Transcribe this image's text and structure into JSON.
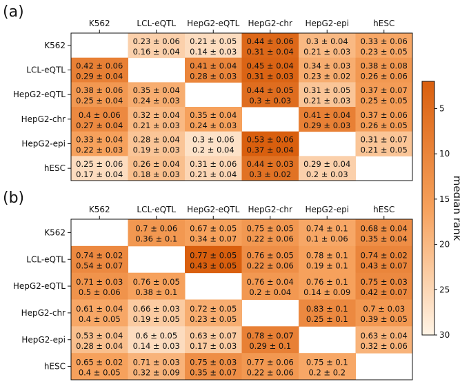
{
  "chart_data": [
    {
      "type": "heatmap",
      "panel_label": "(a)",
      "columns": [
        "K562",
        "LCL-eQTL",
        "HepG2-eQTL",
        "HepG2-chr",
        "HepG2-epi",
        "hESC"
      ],
      "rows": [
        "K562",
        "LCL-eQTL",
        "HepG2-eQTL",
        "HepG2-chr",
        "HepG2-epi",
        "hESC"
      ],
      "cells": [
        [
          null,
          [
            "0.23 ± 0.06",
            "0.16 ± 0.04"
          ],
          [
            "0.21 ± 0.05",
            "0.14 ± 0.03"
          ],
          [
            "0.44 ± 0.06",
            "0.31 ± 0.04"
          ],
          [
            "0.3 ± 0.04",
            "0.21 ± 0.03"
          ],
          [
            "0.33 ± 0.06",
            "0.23 ± 0.05"
          ]
        ],
        [
          [
            "0.42 ± 0.06",
            "0.29 ± 0.04"
          ],
          null,
          [
            "0.41 ± 0.04",
            "0.28 ± 0.03"
          ],
          [
            "0.45 ± 0.04",
            "0.31 ± 0.03"
          ],
          [
            "0.34 ± 0.03",
            "0.23 ± 0.02"
          ],
          [
            "0.38 ± 0.08",
            "0.26 ± 0.06"
          ]
        ],
        [
          [
            "0.38 ± 0.06",
            "0.25 ± 0.04"
          ],
          [
            "0.35 ± 0.04",
            "0.24 ± 0.03"
          ],
          null,
          [
            "0.44 ± 0.05",
            "0.3 ± 0.03"
          ],
          [
            "0.31 ± 0.05",
            "0.21 ± 0.03"
          ],
          [
            "0.37 ± 0.07",
            "0.25 ± 0.05"
          ]
        ],
        [
          [
            "0.4 ± 0.06",
            "0.27 ± 0.04"
          ],
          [
            "0.32 ± 0.04",
            "0.21 ± 0.03"
          ],
          [
            "0.35 ± 0.04",
            "0.24 ± 0.03"
          ],
          null,
          [
            "0.41 ± 0.04",
            "0.29 ± 0.03"
          ],
          [
            "0.37 ± 0.06",
            "0.26 ± 0.05"
          ]
        ],
        [
          [
            "0.33 ± 0.04",
            "0.22 ± 0.03"
          ],
          [
            "0.28 ± 0.04",
            "0.19 ± 0.03"
          ],
          [
            "0.3 ± 0.06",
            "0.2 ± 0.04"
          ],
          [
            "0.53 ± 0.06",
            "0.37 ± 0.04"
          ],
          null,
          [
            "0.31 ± 0.07",
            "0.21 ± 0.05"
          ]
        ],
        [
          [
            "0.25 ± 0.06",
            "0.17 ± 0.04"
          ],
          [
            "0.26 ± 0.04",
            "0.18 ± 0.03"
          ],
          [
            "0.31 ± 0.06",
            "0.21 ± 0.04"
          ],
          [
            "0.44 ± 0.03",
            "0.3 ± 0.02"
          ],
          [
            "0.29 ± 0.04",
            "0.2 ± 0.03"
          ],
          null
        ]
      ],
      "median_rank": [
        [
          null,
          24,
          26,
          4,
          20,
          17
        ],
        [
          9,
          null,
          10,
          3,
          18,
          14
        ],
        [
          14,
          18,
          null,
          5,
          22,
          15
        ],
        [
          11,
          20,
          16,
          null,
          9,
          15
        ],
        [
          16,
          22,
          27,
          2,
          null,
          22
        ],
        [
          26,
          21,
          25,
          6,
          24,
          null
        ]
      ]
    },
    {
      "type": "heatmap",
      "panel_label": "(b)",
      "columns": [
        "K562",
        "LCL-eQTL",
        "HepG2-eQTL",
        "HepG2-chr",
        "HepG2-epi",
        "hESC"
      ],
      "rows": [
        "K562",
        "LCL-eQTL",
        "HepG2-eQTL",
        "HepG2-chr",
        "HepG2-epi",
        "hESC"
      ],
      "cells": [
        [
          null,
          [
            "0.7 ± 0.06",
            "0.36 ± 0.1"
          ],
          [
            "0.67 ± 0.05",
            "0.34 ± 0.07"
          ],
          [
            "0.75 ± 0.05",
            "0.22 ± 0.06"
          ],
          [
            "0.74 ± 0.1",
            "0.1 ± 0.06"
          ],
          [
            "0.68 ± 0.04",
            "0.35 ± 0.04"
          ]
        ],
        [
          [
            "0.74 ± 0.02",
            "0.54 ± 0.07"
          ],
          null,
          [
            "0.77 ± 0.05",
            "0.43 ± 0.05"
          ],
          [
            "0.76 ± 0.05",
            "0.22 ± 0.06"
          ],
          [
            "0.78 ± 0.1",
            "0.19 ± 0.1"
          ],
          [
            "0.74 ± 0.02",
            "0.43 ± 0.07"
          ]
        ],
        [
          [
            "0.71 ± 0.03",
            "0.5 ± 0.06"
          ],
          [
            "0.76 ± 0.05",
            "0.38 ± 0.1"
          ],
          null,
          [
            "0.76 ± 0.04",
            "0.2 ± 0.04"
          ],
          [
            "0.76 ± 0.1",
            "0.14 ± 0.09"
          ],
          [
            "0.75 ± 0.03",
            "0.42 ± 0.07"
          ]
        ],
        [
          [
            "0.61 ± 0.04",
            "0.4 ± 0.05"
          ],
          [
            "0.66 ± 0.03",
            "0.19 ± 0.05"
          ],
          [
            "0.72 ± 0.05",
            "0.23 ± 0.05"
          ],
          null,
          [
            "0.83 ± 0.1",
            "0.25 ± 0.1"
          ],
          [
            "0.7 ± 0.03",
            "0.39 ± 0.05"
          ]
        ],
        [
          [
            "0.53 ± 0.04",
            "0.28 ± 0.04"
          ],
          [
            "0.6 ± 0.05",
            "0.14 ± 0.03"
          ],
          [
            "0.63 ± 0.07",
            "0.17 ± 0.03"
          ],
          [
            "0.78 ± 0.07",
            "0.29 ± 0.1"
          ],
          null,
          [
            "0.63 ± 0.04",
            "0.32 ± 0.06"
          ]
        ],
        [
          [
            "0.65 ± 0.02",
            "0.4 ± 0.05"
          ],
          [
            "0.71 ± 0.03",
            "0.32 ± 0.09"
          ],
          [
            "0.75 ± 0.03",
            "0.35 ± 0.07"
          ],
          [
            "0.77 ± 0.06",
            "0.22 ± 0.06"
          ],
          [
            "0.75 ± 0.1",
            "0.2 ± 0.2"
          ],
          null
        ]
      ],
      "median_rank": [
        [
          null,
          14,
          16,
          14,
          17,
          12
        ],
        [
          11,
          null,
          2,
          12,
          16,
          10
        ],
        [
          13,
          16,
          null,
          14,
          16,
          11
        ],
        [
          17,
          23,
          18,
          null,
          11,
          14
        ],
        [
          21,
          26,
          23,
          9,
          null,
          19
        ],
        [
          16,
          19,
          12,
          14,
          17,
          null
        ]
      ]
    }
  ],
  "colorbar": {
    "label": "median rank",
    "ticks": [
      5,
      10,
      15,
      20,
      25,
      30
    ],
    "range": [
      2,
      30
    ],
    "colors": {
      "low_rank": "#d95f0e",
      "mid_rank": "#f6a15c",
      "high_rank": "#fff4e6"
    }
  }
}
